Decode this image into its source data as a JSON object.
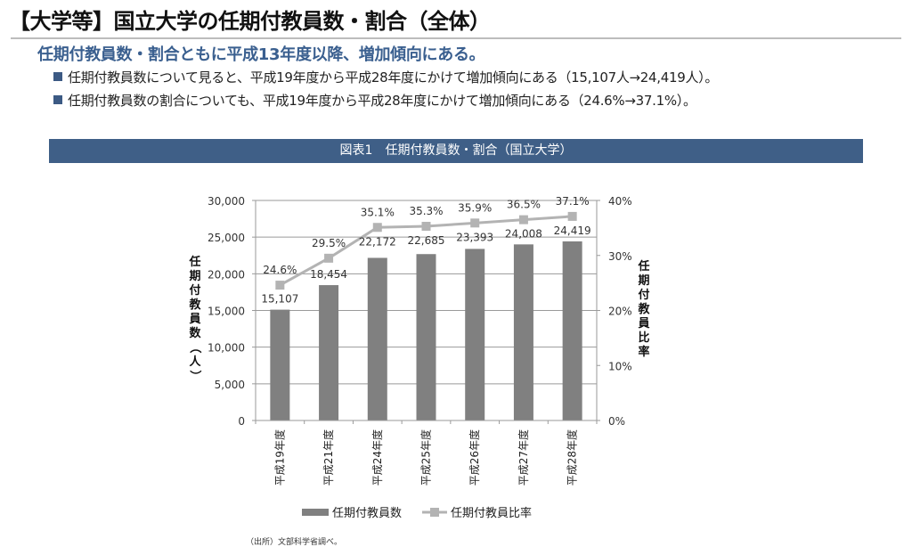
{
  "page": {
    "title": "【大学等】国立大学の任期付教員数・割合（全体）",
    "subtitle": "任期付教員数・割合ともに平成13年度以降、増加傾向にある。",
    "bullets": [
      "任期付教員数について見ると、平成19年度から平成28年度にかけて増加傾向にある（15,107人→24,419人）。",
      "任期付教員数の割合についても、平成19年度から平成28年度にかけて増加傾向にある（24.6%→37.1%）。"
    ],
    "figure_banner": "図表1　任期付教員数・割合（国立大学）",
    "source": "（出所）文部科学省調べ。"
  },
  "colors": {
    "banner": "#3f5f87",
    "subtitle": "#3a5f8f",
    "bar": "#808080",
    "line": "#b3b3b3",
    "grid": "#9a9a9a"
  },
  "chart_data": {
    "type": "bar",
    "title": "図表1　任期付教員数・割合（国立大学）",
    "categories": [
      "平成19年度",
      "平成21年度",
      "平成24年度",
      "平成25年度",
      "平成26年度",
      "平成27年度",
      "平成28年度"
    ],
    "series": [
      {
        "name": "任期付教員数",
        "type": "bar",
        "axis": "left",
        "values": [
          15107,
          18454,
          22172,
          22685,
          23393,
          24008,
          24419
        ],
        "labels": [
          "15,107",
          "18,454",
          "22,172",
          "22,685",
          "23,393",
          "24,008",
          "24,419"
        ]
      },
      {
        "name": "任期付教員比率",
        "type": "line",
        "axis": "right",
        "values": [
          24.6,
          29.5,
          35.1,
          35.3,
          35.9,
          36.5,
          37.1
        ],
        "labels": [
          "24.6%",
          "29.5%",
          "35.1%",
          "35.3%",
          "35.9%",
          "36.5%",
          "37.1%"
        ]
      }
    ],
    "ylabel": "任期付教員数（人）",
    "y2label": "任期付教員比率",
    "ylim": [
      0,
      30000
    ],
    "y2lim": [
      0,
      40
    ],
    "yticks": [
      "0",
      "5,000",
      "10,000",
      "15,000",
      "20,000",
      "25,000",
      "30,000"
    ],
    "y2ticks": [
      "0%",
      "10%",
      "20%",
      "30%",
      "40%"
    ],
    "grid": true,
    "legend_position": "bottom",
    "legend": [
      "任期付教員数",
      "任期付教員比率"
    ]
  }
}
